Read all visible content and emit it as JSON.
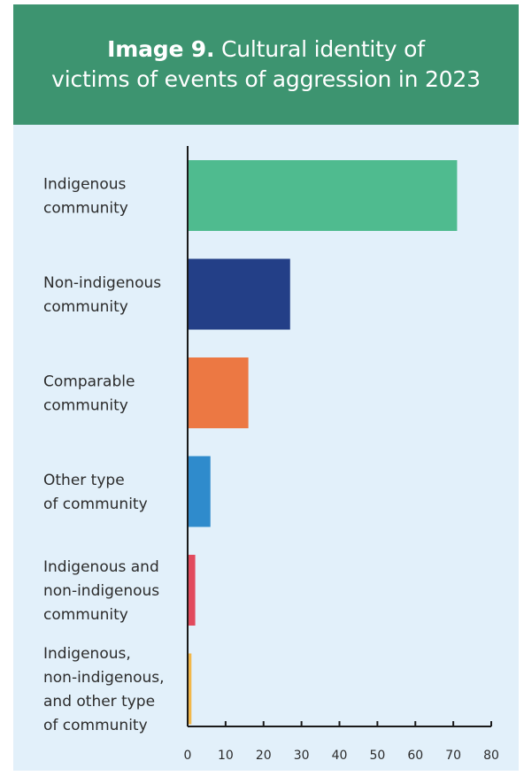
{
  "header": {
    "title_bold": "Image 9.",
    "title_rest": "Cultural identity of",
    "title_line2": "victims of events of aggression in 2023"
  },
  "chart_data": {
    "type": "bar",
    "orientation": "horizontal",
    "categories": [
      [
        "Indigenous",
        "community"
      ],
      [
        "Non-indigenous",
        "community"
      ],
      [
        "Comparable",
        "community"
      ],
      [
        "Other type",
        "of community"
      ],
      [
        "Indigenous and",
        "non-indigenous",
        "community"
      ],
      [
        "Indigenous,",
        "non-indigenous,",
        "and other type",
        "of community"
      ]
    ],
    "values": [
      71,
      27,
      16,
      6,
      2,
      1
    ],
    "colors": [
      "#4fbb8f",
      "#233f87",
      "#ec7843",
      "#2f8bcc",
      "#e24a5d",
      "#f2b84b"
    ],
    "xlim": [
      0,
      80
    ],
    "xticks": [
      0,
      10,
      20,
      30,
      40,
      50,
      60,
      70,
      80
    ],
    "grid": false,
    "legend": "none"
  }
}
